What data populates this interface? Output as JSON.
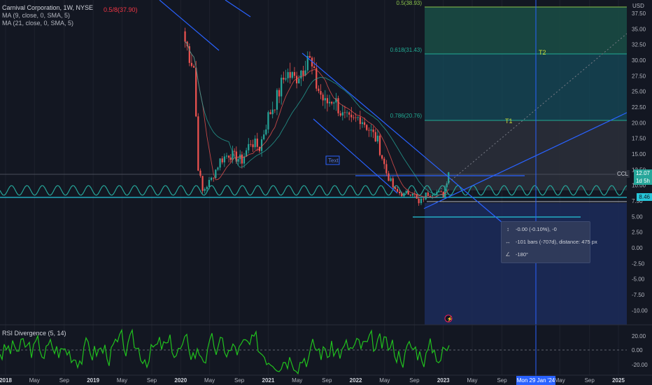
{
  "header": {
    "symbol_title": "Carnival Corporation, 1W, NYSE",
    "ma1": "MA (9, close, 0, SMA, 5)",
    "ma2": "MA (21, close, 0, SMA, 5)",
    "fib_tag": "0.5/8(37.90)",
    "currency": "USD"
  },
  "chart_data": {
    "type": "candlestick",
    "series_name": "CCL",
    "price_axis_ticks": [
      "37.50",
      "35.00",
      "32.50",
      "30.00",
      "27.50",
      "25.00",
      "22.50",
      "20.00",
      "17.50",
      "15.00",
      "12.50",
      "10.00",
      "7.50",
      "5.00",
      "2.50",
      "0.00",
      "-2.50",
      "-5.00",
      "-7.50",
      "-10.00"
    ],
    "time_axis_ticks": [
      "2018",
      "May",
      "Sep",
      "2019",
      "May",
      "Sep",
      "2020",
      "May",
      "Sep",
      "2021",
      "May",
      "Sep",
      "2022",
      "May",
      "Sep",
      "2023",
      "May",
      "Sep",
      "May",
      "Sep",
      "2025"
    ],
    "fib_levels": [
      {
        "label": "0.5(38.93)",
        "value": 38.93
      },
      {
        "label": "0.618(31.43)",
        "value": 31.43
      },
      {
        "label": "0.786(20.76)",
        "value": 20.76
      }
    ],
    "targets": [
      {
        "label": "T2"
      },
      {
        "label": "T1"
      }
    ],
    "last_price": "12.07",
    "countdown": "1d 5h",
    "secondary_price": "8.46",
    "text_box": "Text",
    "ylim": [
      -11,
      40
    ],
    "closes": [
      {
        "t": 2020.05,
        "c": 33
      },
      {
        "t": 2020.15,
        "c": 29
      },
      {
        "t": 2020.2,
        "c": 13
      },
      {
        "t": 2020.25,
        "c": 9
      },
      {
        "t": 2020.35,
        "c": 11
      },
      {
        "t": 2020.45,
        "c": 14
      },
      {
        "t": 2020.55,
        "c": 15
      },
      {
        "t": 2020.7,
        "c": 14
      },
      {
        "t": 2020.8,
        "c": 17
      },
      {
        "t": 2020.9,
        "c": 16
      },
      {
        "t": 2021.0,
        "c": 21
      },
      {
        "t": 2021.1,
        "c": 24
      },
      {
        "t": 2021.2,
        "c": 28
      },
      {
        "t": 2021.3,
        "c": 27
      },
      {
        "t": 2021.4,
        "c": 29
      },
      {
        "t": 2021.45,
        "c": 31
      },
      {
        "t": 2021.55,
        "c": 26
      },
      {
        "t": 2021.65,
        "c": 23
      },
      {
        "t": 2021.75,
        "c": 24
      },
      {
        "t": 2021.85,
        "c": 21
      },
      {
        "t": 2021.95,
        "c": 20
      },
      {
        "t": 2022.05,
        "c": 21
      },
      {
        "t": 2022.15,
        "c": 19
      },
      {
        "t": 2022.25,
        "c": 17
      },
      {
        "t": 2022.35,
        "c": 12
      },
      {
        "t": 2022.45,
        "c": 9
      },
      {
        "t": 2022.55,
        "c": 8.5
      },
      {
        "t": 2022.65,
        "c": 9
      },
      {
        "t": 2022.72,
        "c": 7
      },
      {
        "t": 2022.8,
        "c": 8.5
      },
      {
        "t": 2022.9,
        "c": 9
      },
      {
        "t": 2023.0,
        "c": 8.5
      },
      {
        "t": 2023.06,
        "c": 12.07
      }
    ]
  },
  "tooltip": {
    "price_change": "-0.00 (-0.10%), -0",
    "bars": "-101 bars (-707d), distance: 475 px",
    "angle": "-180°"
  },
  "rsi": {
    "label": "RSI Divergence (5, 14)",
    "ticks": [
      "20.00",
      "0.00",
      "-20.00"
    ]
  },
  "crosshair_date": "Mon 29 Jan '24",
  "colors": {
    "background": "#131722",
    "up": "#26a69a",
    "down": "#ef5350",
    "trendline": "#2962ff",
    "fib_teal": "#22ab94",
    "rsi_green": "#21c21e",
    "rsi_red": "#e0302a"
  }
}
